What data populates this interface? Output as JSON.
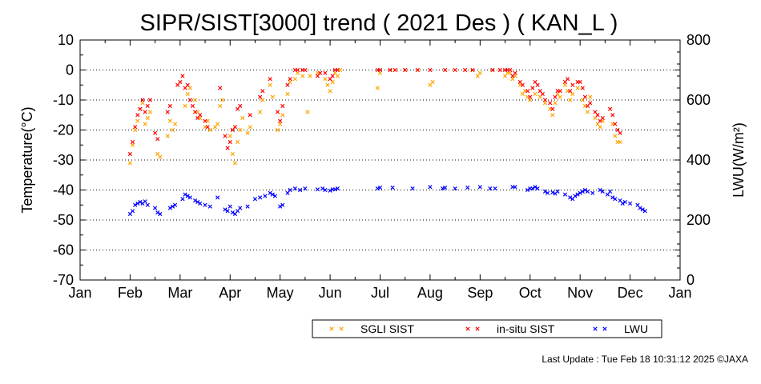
{
  "chart_data": {
    "type": "scatter",
    "title": "SIPR/SIST[3000] trend ( 2021 Des ) ( KAN_L )",
    "ylabel": "Temperature(°C)",
    "y2label": "LWU(W/m²)",
    "ylim": [
      -70,
      10
    ],
    "y2lim": [
      0,
      800
    ],
    "yticks": [
      10,
      0,
      -10,
      -20,
      -30,
      -40,
      -50,
      -60,
      -70
    ],
    "y2ticks": [
      800,
      600,
      400,
      200,
      0
    ],
    "xticks": [
      "Jan",
      "Feb",
      "Mar",
      "Apr",
      "May",
      "Jun",
      "Jul",
      "Aug",
      "Sep",
      "Oct",
      "Nov",
      "Dec",
      "Jan"
    ],
    "grid": "dotted horizontal",
    "legend_position": "bottom",
    "series": [
      {
        "name": "SGLI SIST",
        "color": "#ffa500",
        "axis": "left",
        "points": [
          [
            1.0,
            -31
          ],
          [
            1.05,
            -25
          ],
          [
            1.1,
            -20
          ],
          [
            1.15,
            -17
          ],
          [
            1.2,
            -13
          ],
          [
            1.25,
            -11
          ],
          [
            1.3,
            -18
          ],
          [
            1.35,
            -16
          ],
          [
            1.4,
            -14
          ],
          [
            1.55,
            -28
          ],
          [
            1.6,
            -29
          ],
          [
            1.75,
            -22
          ],
          [
            1.8,
            -17
          ],
          [
            1.85,
            -20
          ],
          [
            1.9,
            -18
          ],
          [
            2.1,
            -12
          ],
          [
            2.15,
            -8
          ],
          [
            2.2,
            -6
          ],
          [
            2.3,
            -10
          ],
          [
            2.35,
            -14
          ],
          [
            2.4,
            -16
          ],
          [
            2.5,
            -19
          ],
          [
            2.55,
            -17
          ],
          [
            2.6,
            -20
          ],
          [
            2.7,
            -19
          ],
          [
            2.75,
            -18
          ],
          [
            2.8,
            -12
          ],
          [
            2.85,
            -10
          ],
          [
            3.0,
            -22
          ],
          [
            3.05,
            -28
          ],
          [
            3.1,
            -31
          ],
          [
            3.15,
            -24
          ],
          [
            3.2,
            -20
          ],
          [
            3.25,
            -16
          ],
          [
            3.35,
            -21
          ],
          [
            3.4,
            -19
          ],
          [
            3.6,
            -14
          ],
          [
            3.65,
            -10
          ],
          [
            3.8,
            -5
          ],
          [
            3.85,
            -9
          ],
          [
            3.95,
            -20
          ],
          [
            4.0,
            -18
          ],
          [
            4.05,
            -15
          ],
          [
            4.15,
            -8
          ],
          [
            4.2,
            -4
          ],
          [
            4.3,
            -3
          ],
          [
            4.35,
            -1
          ],
          [
            4.45,
            -2
          ],
          [
            4.55,
            -14
          ],
          [
            4.6,
            -2
          ],
          [
            4.75,
            -1
          ],
          [
            4.9,
            -3
          ],
          [
            4.95,
            -5
          ],
          [
            5.0,
            -7
          ],
          [
            5.05,
            -4
          ],
          [
            5.1,
            -1
          ],
          [
            5.15,
            -2
          ],
          [
            5.2,
            0
          ],
          [
            5.95,
            -6
          ],
          [
            6.0,
            -1
          ],
          [
            6.2,
            0
          ],
          [
            6.3,
            0
          ],
          [
            6.5,
            0
          ],
          [
            6.75,
            0
          ],
          [
            7.0,
            -5
          ],
          [
            7.05,
            -4
          ],
          [
            7.3,
            0
          ],
          [
            7.5,
            0
          ],
          [
            7.7,
            0
          ],
          [
            7.85,
            0
          ],
          [
            7.95,
            -2
          ],
          [
            8.0,
            -1
          ],
          [
            8.25,
            0
          ],
          [
            8.4,
            0
          ],
          [
            8.5,
            -2
          ],
          [
            8.55,
            -1
          ],
          [
            8.6,
            -1
          ],
          [
            8.65,
            -3
          ],
          [
            8.7,
            -2
          ],
          [
            8.8,
            -5
          ],
          [
            8.85,
            -8
          ],
          [
            8.9,
            -7
          ],
          [
            8.95,
            -9
          ],
          [
            9.0,
            -10
          ],
          [
            9.05,
            -6
          ],
          [
            9.1,
            -8
          ],
          [
            9.2,
            -9
          ],
          [
            9.3,
            -11
          ],
          [
            9.4,
            -13
          ],
          [
            9.45,
            -15
          ],
          [
            9.5,
            -11
          ],
          [
            9.55,
            -8
          ],
          [
            9.6,
            -9
          ],
          [
            9.7,
            -5
          ],
          [
            9.75,
            -7
          ],
          [
            9.8,
            -10
          ],
          [
            9.85,
            -8
          ],
          [
            9.95,
            -6
          ],
          [
            10.05,
            -10
          ],
          [
            10.1,
            -12
          ],
          [
            10.15,
            -14
          ],
          [
            10.2,
            -9
          ],
          [
            10.3,
            -16
          ],
          [
            10.35,
            -18
          ],
          [
            10.4,
            -19
          ],
          [
            10.45,
            -17
          ],
          [
            10.6,
            -13
          ],
          [
            10.65,
            -18
          ],
          [
            10.7,
            -22
          ],
          [
            10.75,
            -24
          ],
          [
            10.8,
            -24
          ]
        ]
      },
      {
        "name": "in-situ SIST",
        "color": "#ff0000",
        "axis": "left",
        "points": [
          [
            1.0,
            -28
          ],
          [
            1.05,
            -24
          ],
          [
            1.1,
            -19
          ],
          [
            1.15,
            -15
          ],
          [
            1.2,
            -13
          ],
          [
            1.25,
            -10
          ],
          [
            1.3,
            -14
          ],
          [
            1.35,
            -12
          ],
          [
            1.4,
            -10
          ],
          [
            1.5,
            -21
          ],
          [
            1.55,
            -23
          ],
          [
            1.75,
            -14
          ],
          [
            1.8,
            -12
          ],
          [
            1.95,
            -5
          ],
          [
            2.0,
            -4
          ],
          [
            2.05,
            -2
          ],
          [
            2.1,
            -6
          ],
          [
            2.15,
            -5
          ],
          [
            2.2,
            -10
          ],
          [
            2.25,
            -12
          ],
          [
            2.3,
            -14
          ],
          [
            2.35,
            -16
          ],
          [
            2.4,
            -15
          ],
          [
            2.5,
            -17
          ],
          [
            2.55,
            -19
          ],
          [
            2.8,
            -6
          ],
          [
            2.9,
            -22
          ],
          [
            2.95,
            -26
          ],
          [
            3.0,
            -24
          ],
          [
            3.05,
            -20
          ],
          [
            3.1,
            -19
          ],
          [
            3.15,
            -13
          ],
          [
            3.2,
            -12
          ],
          [
            3.4,
            -15
          ],
          [
            3.6,
            -9
          ],
          [
            3.65,
            -7
          ],
          [
            3.8,
            -3
          ],
          [
            3.95,
            -14
          ],
          [
            4.0,
            -17
          ],
          [
            4.05,
            -12
          ],
          [
            4.15,
            -5
          ],
          [
            4.2,
            -3
          ],
          [
            4.3,
            0
          ],
          [
            4.35,
            0
          ],
          [
            4.45,
            0
          ],
          [
            4.5,
            0
          ],
          [
            4.75,
            -2
          ],
          [
            4.8,
            -1
          ],
          [
            4.9,
            -1
          ],
          [
            5.0,
            -3
          ],
          [
            5.05,
            -2
          ],
          [
            5.1,
            0
          ],
          [
            5.15,
            0
          ],
          [
            5.95,
            0
          ],
          [
            6.0,
            0
          ],
          [
            6.2,
            0
          ],
          [
            6.3,
            0
          ],
          [
            6.5,
            0
          ],
          [
            6.75,
            0
          ],
          [
            7.0,
            0
          ],
          [
            7.3,
            0
          ],
          [
            7.5,
            0
          ],
          [
            7.7,
            0
          ],
          [
            7.85,
            0
          ],
          [
            8.25,
            0
          ],
          [
            8.4,
            0
          ],
          [
            8.5,
            0
          ],
          [
            8.55,
            0
          ],
          [
            8.6,
            0
          ],
          [
            8.65,
            -2
          ],
          [
            8.7,
            -1
          ],
          [
            8.8,
            -4
          ],
          [
            8.85,
            -5
          ],
          [
            8.95,
            -7
          ],
          [
            9.0,
            -9
          ],
          [
            9.05,
            -6
          ],
          [
            9.1,
            -4
          ],
          [
            9.15,
            -5
          ],
          [
            9.2,
            -7
          ],
          [
            9.25,
            -8
          ],
          [
            9.3,
            -10
          ],
          [
            9.4,
            -11
          ],
          [
            9.45,
            -13
          ],
          [
            9.5,
            -9
          ],
          [
            9.55,
            -7
          ],
          [
            9.6,
            -7
          ],
          [
            9.7,
            -4
          ],
          [
            9.75,
            -3
          ],
          [
            9.8,
            -7
          ],
          [
            9.85,
            -5
          ],
          [
            9.95,
            -4
          ],
          [
            10.0,
            -4
          ],
          [
            10.05,
            -6
          ],
          [
            10.1,
            -9
          ],
          [
            10.15,
            -12
          ],
          [
            10.2,
            -11
          ],
          [
            10.3,
            -14
          ],
          [
            10.35,
            -15
          ],
          [
            10.4,
            -17
          ],
          [
            10.45,
            -16
          ],
          [
            10.6,
            -13
          ],
          [
            10.65,
            -15
          ],
          [
            10.7,
            -18
          ],
          [
            10.75,
            -20
          ],
          [
            10.8,
            -21
          ]
        ]
      },
      {
        "name": "LWU",
        "color": "#0000ff",
        "axis": "right",
        "points": [
          [
            1.0,
            220
          ],
          [
            1.05,
            230
          ],
          [
            1.1,
            250
          ],
          [
            1.15,
            255
          ],
          [
            1.2,
            260
          ],
          [
            1.25,
            255
          ],
          [
            1.3,
            262
          ],
          [
            1.35,
            250
          ],
          [
            1.5,
            240
          ],
          [
            1.55,
            225
          ],
          [
            1.6,
            220
          ],
          [
            1.8,
            240
          ],
          [
            1.85,
            245
          ],
          [
            1.9,
            250
          ],
          [
            2.05,
            270
          ],
          [
            2.1,
            285
          ],
          [
            2.15,
            280
          ],
          [
            2.2,
            275
          ],
          [
            2.3,
            265
          ],
          [
            2.35,
            260
          ],
          [
            2.4,
            255
          ],
          [
            2.5,
            250
          ],
          [
            2.6,
            245
          ],
          [
            2.75,
            275
          ],
          [
            2.9,
            235
          ],
          [
            2.95,
            230
          ],
          [
            3.0,
            245
          ],
          [
            3.05,
            225
          ],
          [
            3.1,
            220
          ],
          [
            3.15,
            230
          ],
          [
            3.2,
            240
          ],
          [
            3.35,
            245
          ],
          [
            3.5,
            270
          ],
          [
            3.6,
            275
          ],
          [
            3.7,
            280
          ],
          [
            3.8,
            290
          ],
          [
            3.85,
            285
          ],
          [
            3.9,
            280
          ],
          [
            4.0,
            245
          ],
          [
            4.05,
            250
          ],
          [
            4.15,
            290
          ],
          [
            4.2,
            300
          ],
          [
            4.3,
            305
          ],
          [
            4.4,
            300
          ],
          [
            4.5,
            305
          ],
          [
            4.75,
            302
          ],
          [
            4.85,
            305
          ],
          [
            4.9,
            300
          ],
          [
            5.0,
            298
          ],
          [
            5.05,
            302
          ],
          [
            5.1,
            302
          ],
          [
            5.15,
            305
          ],
          [
            5.95,
            305
          ],
          [
            6.0,
            308
          ],
          [
            6.25,
            308
          ],
          [
            6.65,
            305
          ],
          [
            7.0,
            310
          ],
          [
            7.25,
            305
          ],
          [
            7.3,
            308
          ],
          [
            7.5,
            305
          ],
          [
            7.75,
            308
          ],
          [
            8.0,
            310
          ],
          [
            8.2,
            305
          ],
          [
            8.3,
            305
          ],
          [
            8.65,
            310
          ],
          [
            8.7,
            310
          ],
          [
            8.95,
            300
          ],
          [
            9.0,
            305
          ],
          [
            9.05,
            305
          ],
          [
            9.1,
            310
          ],
          [
            9.15,
            305
          ],
          [
            9.3,
            295
          ],
          [
            9.35,
            290
          ],
          [
            9.45,
            292
          ],
          [
            9.5,
            288
          ],
          [
            9.55,
            295
          ],
          [
            9.7,
            285
          ],
          [
            9.8,
            275
          ],
          [
            9.85,
            270
          ],
          [
            9.9,
            280
          ],
          [
            9.95,
            285
          ],
          [
            10.0,
            290
          ],
          [
            10.05,
            295
          ],
          [
            10.1,
            300
          ],
          [
            10.15,
            295
          ],
          [
            10.25,
            290
          ],
          [
            10.4,
            300
          ],
          [
            10.45,
            295
          ],
          [
            10.55,
            285
          ],
          [
            10.6,
            295
          ],
          [
            10.65,
            275
          ],
          [
            10.7,
            270
          ],
          [
            10.8,
            265
          ],
          [
            10.85,
            255
          ],
          [
            10.9,
            260
          ],
          [
            11.0,
            255
          ],
          [
            11.15,
            250
          ],
          [
            11.2,
            240
          ],
          [
            11.25,
            235
          ],
          [
            11.3,
            230
          ]
        ]
      }
    ]
  },
  "footer": "Last Update : Tue Feb 18 10:31:12 2025 ©JAXA"
}
